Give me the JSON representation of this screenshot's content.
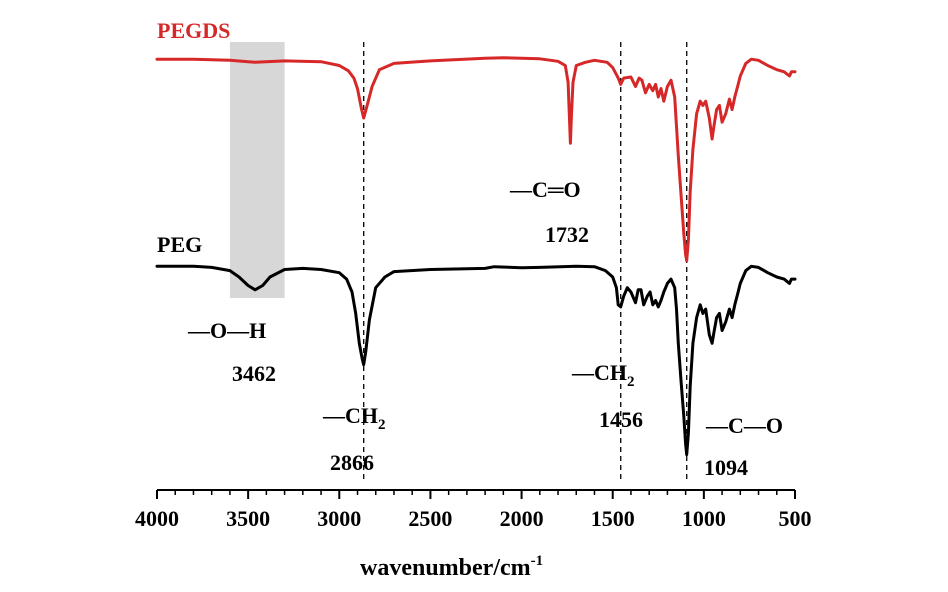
{
  "chart_data": {
    "type": "line",
    "xlabel": "wavenumber/cm",
    "xlabel_sup": "-1",
    "xlim": [
      4000,
      500
    ],
    "x_reversed": true,
    "x_ticks": [
      4000,
      3500,
      3000,
      2500,
      2000,
      1500,
      1000,
      500
    ],
    "y_axis_shown": false,
    "grid": false,
    "series": [
      {
        "name": "PEGDS",
        "color": "#d62828",
        "x": [
          4000,
          3800,
          3600,
          3500,
          3462,
          3300,
          3100,
          3000,
          2950,
          2920,
          2900,
          2880,
          2866,
          2850,
          2820,
          2780,
          2700,
          2500,
          2200,
          2100,
          1900,
          1800,
          1760,
          1745,
          1738,
          1732,
          1726,
          1718,
          1700,
          1650,
          1600,
          1530,
          1500,
          1470,
          1456,
          1440,
          1400,
          1375,
          1355,
          1340,
          1320,
          1300,
          1280,
          1265,
          1250,
          1235,
          1220,
          1200,
          1180,
          1160,
          1150,
          1140,
          1125,
          1110,
          1100,
          1094,
          1085,
          1075,
          1060,
          1040,
          1020,
          1005,
          990,
          970,
          955,
          945,
          930,
          915,
          900,
          880,
          860,
          845,
          830,
          815,
          800,
          770,
          740,
          700,
          650,
          600,
          560,
          530,
          520,
          500
        ],
        "values": [
          98,
          98,
          97.5,
          96.8,
          96.5,
          97.2,
          96.8,
          95,
          92.5,
          89,
          84,
          75,
          70,
          75,
          85,
          93,
          96,
          97.2,
          98.5,
          98.7,
          98.2,
          97,
          95,
          87,
          72,
          58,
          72,
          87,
          95,
          96.5,
          97.5,
          96.5,
          94,
          89,
          86,
          89,
          89.5,
          85,
          89,
          88,
          82,
          86,
          83,
          86,
          80,
          84,
          78,
          85,
          88,
          80,
          66,
          52,
          33,
          15,
          5,
          2,
          12,
          35,
          55,
          72,
          78,
          76,
          78,
          70,
          60,
          66,
          74,
          76,
          68,
          72,
          79,
          74,
          80,
          85,
          90,
          96,
          98,
          97.5,
          95,
          93,
          92,
          90,
          92,
          92
        ]
      },
      {
        "name": "PEG",
        "color": "#000000",
        "x": [
          4000,
          3800,
          3700,
          3600,
          3550,
          3500,
          3462,
          3420,
          3380,
          3300,
          3200,
          3100,
          3000,
          2960,
          2930,
          2910,
          2890,
          2875,
          2866,
          2855,
          2835,
          2800,
          2750,
          2700,
          2500,
          2200,
          2150,
          2000,
          1900,
          1700,
          1600,
          1540,
          1500,
          1480,
          1470,
          1456,
          1440,
          1420,
          1400,
          1375,
          1360,
          1345,
          1330,
          1310,
          1295,
          1280,
          1265,
          1250,
          1235,
          1220,
          1200,
          1180,
          1160,
          1150,
          1140,
          1125,
          1110,
          1100,
          1094,
          1085,
          1075,
          1060,
          1040,
          1020,
          1005,
          990,
          970,
          955,
          945,
          930,
          915,
          900,
          880,
          860,
          845,
          830,
          815,
          800,
          770,
          740,
          700,
          650,
          600,
          560,
          530,
          520,
          500
        ],
        "values": [
          98,
          98,
          97.5,
          96,
          93,
          89,
          87,
          89,
          93,
          96.5,
          97,
          96.5,
          95,
          92,
          86,
          76,
          62,
          55,
          52,
          58,
          73,
          88,
          93,
          95.5,
          96.5,
          97,
          97.8,
          97.3,
          97.5,
          98,
          97.8,
          96,
          93,
          88,
          80,
          79,
          84,
          88,
          86,
          81,
          87,
          87,
          80,
          84,
          86,
          80,
          82,
          79,
          82,
          86,
          90,
          92,
          88,
          78,
          62,
          44,
          28,
          15,
          10,
          20,
          42,
          62,
          74,
          80,
          76,
          78,
          66,
          62,
          67,
          74,
          76,
          68,
          72,
          78,
          74,
          80,
          85,
          90,
          96,
          98,
          97.5,
          95,
          93,
          92,
          90,
          92,
          92
        ]
      }
    ],
    "series_labels": {
      "PEGDS": "PEGDS",
      "PEG": "PEG"
    },
    "highlight_band": {
      "from": 3600,
      "to": 3300,
      "color": "#d3d3d3"
    },
    "dashed_lines": [
      2866,
      1456,
      1094
    ],
    "annotations": [
      {
        "bond": "—O—H",
        "sub": "",
        "wavenumber": "3462"
      },
      {
        "bond": "—CH",
        "sub": "2",
        "wavenumber": "2866"
      },
      {
        "bond": "—C═O",
        "sub": "",
        "wavenumber": "1732"
      },
      {
        "bond": "—CH",
        "sub": "2",
        "wavenumber": "1456"
      },
      {
        "bond": "—C—O",
        "sub": "",
        "wavenumber": "1094"
      }
    ]
  }
}
